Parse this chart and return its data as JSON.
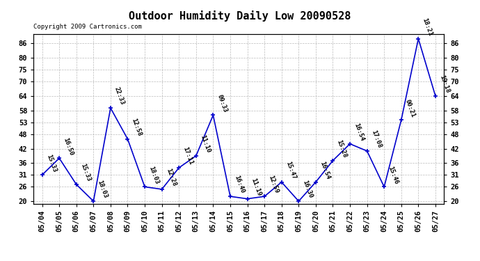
{
  "title": "Outdoor Humidity Daily Low 20090528",
  "copyright": "Copyright 2009 Cartronics.com",
  "dates": [
    "05/04",
    "05/05",
    "05/06",
    "05/07",
    "05/08",
    "05/09",
    "05/10",
    "05/11",
    "05/12",
    "05/13",
    "05/14",
    "05/15",
    "05/16",
    "05/17",
    "05/18",
    "05/19",
    "05/20",
    "05/21",
    "05/22",
    "05/23",
    "05/24",
    "05/25",
    "05/26",
    "05/27"
  ],
  "values": [
    31,
    38,
    27,
    20,
    59,
    46,
    26,
    25,
    34,
    39,
    56,
    22,
    21,
    22,
    28,
    20,
    28,
    37,
    44,
    41,
    26,
    54,
    88,
    64
  ],
  "labels": [
    "15:33",
    "16:50",
    "15:33",
    "18:03",
    "22:33",
    "12:58",
    "18:03",
    "12:28",
    "17:11",
    "11:10",
    "09:33",
    "16:40",
    "11:19",
    "12:59",
    "15:47",
    "16:30",
    "16:54",
    "15:28",
    "16:54",
    "17:08",
    "15:46",
    "00:21",
    "18:21",
    "19:18"
  ],
  "line_color": "#0000cc",
  "marker_color": "#0000cc",
  "bg_color": "#ffffff",
  "grid_color": "#aaaaaa",
  "ylim": [
    19,
    90
  ],
  "yticks": [
    20,
    26,
    31,
    36,
    42,
    48,
    53,
    58,
    64,
    70,
    75,
    80,
    86
  ],
  "title_fontsize": 11,
  "label_fontsize": 6.5,
  "tick_fontsize": 7.5,
  "copyright_fontsize": 6.5
}
